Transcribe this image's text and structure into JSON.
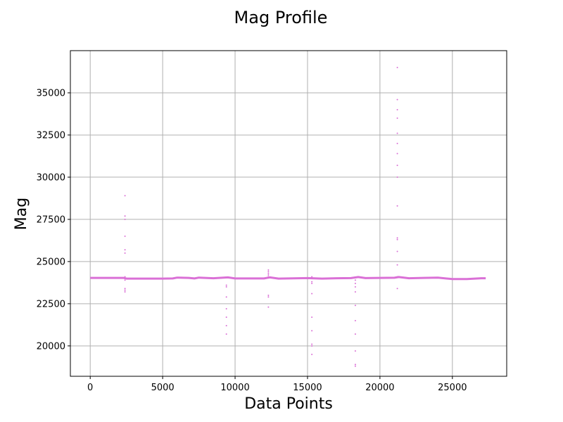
{
  "chart_data": {
    "type": "scatter",
    "title": "Mag Profile",
    "xlabel": "Data Points",
    "ylabel": "Mag",
    "xlim": [
      -1370,
      28750
    ],
    "ylim": [
      18200,
      37500
    ],
    "xticks": [
      0,
      5000,
      10000,
      15000,
      20000,
      25000
    ],
    "yticks": [
      20000,
      22500,
      25000,
      27500,
      30000,
      32500,
      35000
    ],
    "grid": true,
    "color": "#da70d6",
    "baseline": [
      [
        0,
        24030
      ],
      [
        2300,
        24030
      ],
      [
        2500,
        23990
      ],
      [
        5000,
        23990
      ],
      [
        5700,
        24000
      ],
      [
        6000,
        24050
      ],
      [
        6800,
        24030
      ],
      [
        7200,
        24000
      ],
      [
        7500,
        24050
      ],
      [
        8500,
        24010
      ],
      [
        9500,
        24060
      ],
      [
        10000,
        24000
      ],
      [
        12000,
        24000
      ],
      [
        12400,
        24060
      ],
      [
        13000,
        23990
      ],
      [
        15000,
        24020
      ],
      [
        16000,
        23990
      ],
      [
        17000,
        24010
      ],
      [
        18000,
        24020
      ],
      [
        18500,
        24080
      ],
      [
        19000,
        24020
      ],
      [
        21000,
        24040
      ],
      [
        21300,
        24080
      ],
      [
        22000,
        24010
      ],
      [
        23000,
        24030
      ],
      [
        24000,
        24050
      ],
      [
        25000,
        23960
      ],
      [
        26000,
        23960
      ],
      [
        27000,
        24010
      ],
      [
        27300,
        24010
      ]
    ],
    "series": [
      {
        "x": [
          2400,
          2400,
          2400,
          2400,
          2400,
          2400,
          2400,
          2400,
          2400,
          2400,
          2400,
          9400,
          9400,
          9400,
          9400,
          9400,
          9400,
          9400,
          12300,
          12300,
          12300,
          12300,
          12300,
          12300,
          12300,
          12300,
          15300,
          15300,
          15300,
          15300,
          15300,
          15300,
          15300,
          15300,
          15300,
          18300,
          18300,
          18300,
          18300,
          18300,
          18300,
          18300,
          18300,
          18300,
          18300,
          21200,
          21200,
          21200,
          21200,
          21200,
          21200,
          21200,
          21200,
          21200,
          21200,
          21200,
          21200,
          21200,
          21200,
          21200,
          21200
        ],
        "y": [
          28900,
          27700,
          27500,
          26500,
          25700,
          25500,
          24100,
          23900,
          23400,
          23300,
          23200,
          23600,
          23500,
          22900,
          22200,
          21700,
          21200,
          20700,
          24500,
          24400,
          24300,
          24200,
          23000,
          22900,
          22300,
          24100,
          23800,
          23700,
          23100,
          21700,
          20900,
          20100,
          20000,
          19500,
          24100,
          23900,
          23700,
          23500,
          23200,
          22400,
          21500,
          20700,
          19700,
          18900,
          18800,
          36500,
          34600,
          34000,
          33500,
          32600,
          32000,
          31400,
          30700,
          30000,
          28300,
          26400,
          26300,
          25600,
          24800,
          24100,
          23400
        ]
      }
    ]
  }
}
